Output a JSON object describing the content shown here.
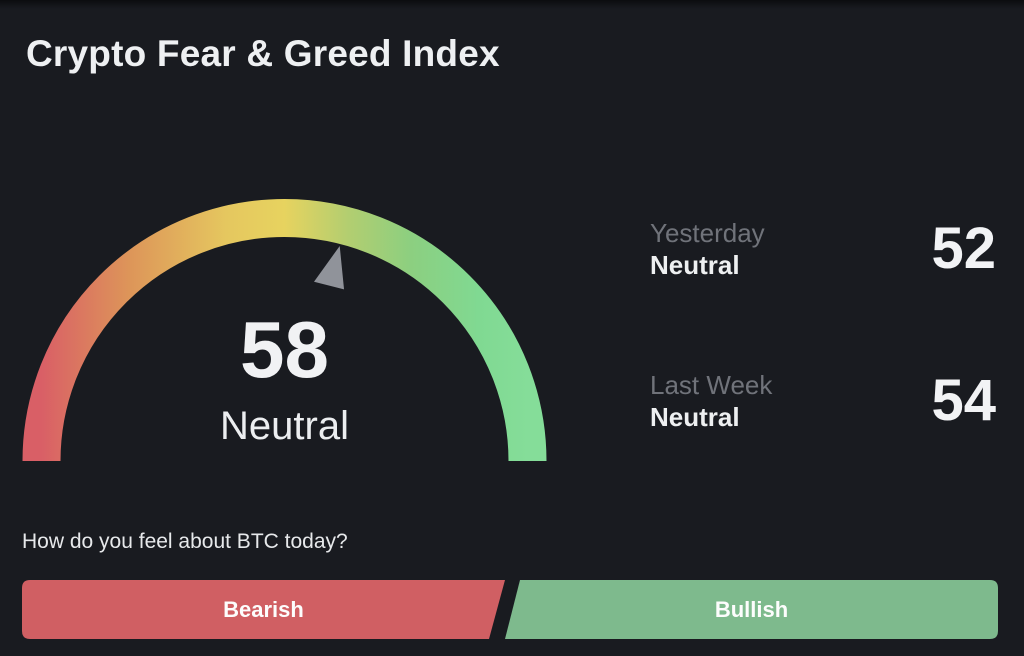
{
  "title": "Crypto Fear & Greed Index",
  "gauge": {
    "value": "58",
    "sentiment": "Neutral"
  },
  "history": [
    {
      "period": "Yesterday",
      "sentiment": "Neutral",
      "value": "52"
    },
    {
      "period": "Last Week",
      "sentiment": "Neutral",
      "value": "54"
    }
  ],
  "question": "How do you feel about BTC today?",
  "buttons": {
    "bearish": "Bearish",
    "bullish": "Bullish"
  },
  "colors": {
    "background": "#191b20",
    "text_primary": "#eef0f2",
    "text_muted": "#70737a",
    "needle": "#90939a",
    "bearish_red": "#d05f63",
    "bullish_green": "#7eba8d",
    "arc_red": "#d95f66",
    "arc_orange": "#dd9559",
    "arc_yellow": "#e7d35f",
    "arc_light_green": "#8ccf80",
    "arc_green": "#84dc98"
  }
}
